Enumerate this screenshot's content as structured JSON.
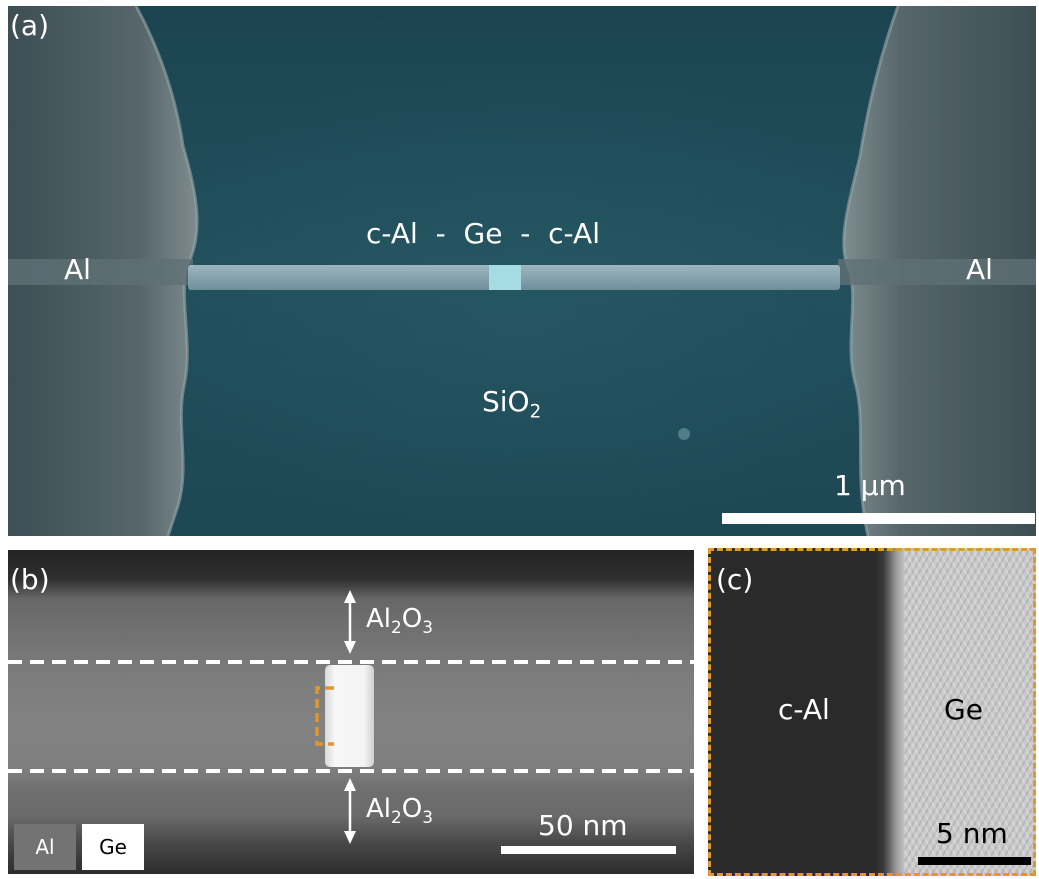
{
  "figure": {
    "panel_a": {
      "label": "(a)",
      "left_electrode": "Al",
      "right_electrode": "Al",
      "wire_label": "c-Al  -  Ge  -  c-Al",
      "substrate": {
        "main": "SiO",
        "sub": "2"
      },
      "scalebar": "1 µm"
    },
    "panel_b": {
      "label": "(b)",
      "top_shell": {
        "main": "Al",
        "sub": "2",
        "tail": "O",
        "sub2": "3"
      },
      "bottom_shell": {
        "main": "Al",
        "sub": "2",
        "tail": "O",
        "sub2": "3"
      },
      "legend": [
        "Al",
        "Ge"
      ],
      "scalebar": "50 nm"
    },
    "panel_c": {
      "label": "(c)",
      "left_region": "c-Al",
      "right_region": "Ge",
      "scalebar": "5 nm"
    },
    "colors": {
      "sio2_tint": "#1f4c57",
      "wire": "#8aa7b3",
      "ge_segment": "#a6dbe4",
      "inset_frame": "#e2962e"
    }
  }
}
